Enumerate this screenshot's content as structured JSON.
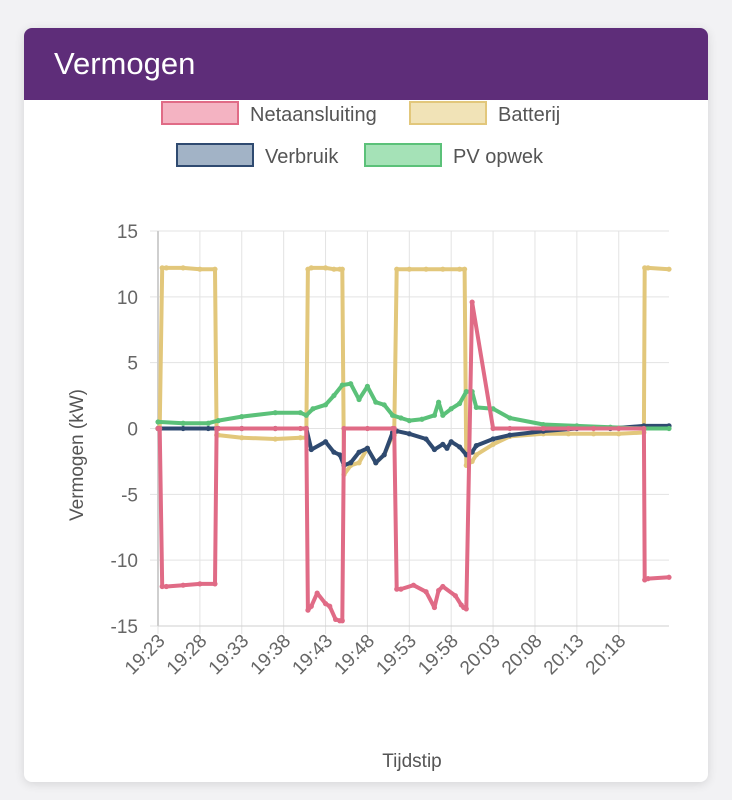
{
  "card": {
    "title": "Vermogen"
  },
  "chart_data": {
    "type": "line",
    "title": "",
    "xlabel": "Tijdstip",
    "ylabel": "Vermogen (kW)",
    "ylim": [
      -15,
      15
    ],
    "xlim_minutes": [
      0,
      61
    ],
    "xtick_labels": [
      "19:23",
      "19:28",
      "19:33",
      "19:38",
      "19:43",
      "19:48",
      "19:53",
      "19:58",
      "20:03",
      "20:08",
      "20:13",
      "20:18"
    ],
    "ytick_values": [
      15,
      10,
      5,
      0,
      -5,
      -10,
      -15
    ],
    "grid": true,
    "legend_position": "top",
    "series": [
      {
        "name": "Netaansluiting",
        "color": "#e06b86",
        "fill": "#f4b3c2",
        "x": [
          0,
          0.2,
          0.5,
          1,
          3,
          5,
          6.8,
          7.0,
          7.2,
          10,
          14,
          17,
          17.7,
          17.9,
          18.3,
          19,
          20,
          20.5,
          21.2,
          21.7,
          22,
          22.2,
          25,
          28,
          28.2,
          28.5,
          29,
          30.5,
          32,
          33,
          33.5,
          34,
          35.5,
          36.2,
          36.5,
          36.8,
          37.5,
          40,
          42,
          46,
          49,
          52,
          55,
          58,
          58.1,
          58.5,
          61
        ],
        "y": [
          0,
          0,
          -12,
          -12,
          -11.9,
          -11.8,
          -11.8,
          0,
          0,
          0,
          0,
          0,
          0,
          -13.8,
          -13.5,
          -12.5,
          -13.3,
          -13.5,
          -14.5,
          -14.6,
          -14.6,
          0,
          0,
          0,
          0,
          -12.2,
          -12.2,
          -11.9,
          -12.4,
          -13.6,
          -12.3,
          -12.0,
          -12.7,
          -13.4,
          -13.6,
          -13.7,
          9.6,
          0,
          0,
          0,
          0,
          0,
          0,
          0,
          -11.5,
          -11.4,
          -11.3
        ]
      },
      {
        "name": "Batterij",
        "color": "#e2c77b",
        "fill": "#f1e3b7",
        "x": [
          0,
          0.2,
          0.5,
          1,
          3,
          5,
          6.8,
          7.0,
          7.2,
          10,
          14,
          17,
          17.7,
          17.9,
          18.3,
          20,
          21,
          21.7,
          22,
          22.2,
          23,
          24,
          25,
          26,
          27,
          28,
          28.2,
          28.5,
          30,
          32,
          34,
          36,
          36.6,
          36.8,
          37.5,
          38,
          40,
          42,
          46,
          49,
          52,
          55,
          58,
          58.1,
          58.5,
          61
        ],
        "y": [
          0,
          0,
          12.2,
          12.2,
          12.2,
          12.1,
          12.1,
          -0.5,
          -0.5,
          -0.7,
          -0.8,
          -0.7,
          -0.7,
          12.1,
          12.2,
          12.2,
          12.1,
          12.1,
          12.1,
          -3.5,
          -2.8,
          -2.6,
          -1.5,
          -2.6,
          -2.0,
          -0.5,
          -0.5,
          12.1,
          12.1,
          12.1,
          12.1,
          12.1,
          12.1,
          -2.8,
          -2.5,
          -2.0,
          -1.2,
          -0.6,
          -0.4,
          -0.4,
          -0.4,
          -0.4,
          -0.3,
          12.2,
          12.2,
          12.1
        ]
      },
      {
        "name": "Verbruik",
        "color": "#2f4a70",
        "fill": "#a2b3c6",
        "x": [
          0,
          3,
          6,
          7.2,
          10,
          14,
          17.7,
          18.3,
          20,
          21,
          21.7,
          22.2,
          23,
          24,
          25,
          26,
          27,
          28,
          28.5,
          30,
          32,
          33,
          34,
          34.5,
          35,
          36,
          36.8,
          37.5,
          38,
          40,
          42,
          46,
          50,
          54,
          58,
          61
        ],
        "y": [
          0,
          0,
          0,
          0,
          0,
          0,
          0,
          -1.6,
          -1.0,
          -1.8,
          -2.0,
          -2.8,
          -2.6,
          -1.8,
          -1.5,
          -2.6,
          -2.0,
          -0.3,
          -0.2,
          -0.4,
          -0.8,
          -1.6,
          -1.2,
          -1.5,
          -1.0,
          -1.4,
          -2.0,
          -1.8,
          -1.3,
          -0.8,
          -0.5,
          -0.2,
          0,
          0,
          0.2,
          0.2
        ]
      },
      {
        "name": "PV opwek",
        "color": "#5bc179",
        "fill": "#a5e2b7",
        "x": [
          0,
          3,
          6,
          7.2,
          10,
          14,
          17,
          17.7,
          18.5,
          20,
          21,
          22,
          23,
          24,
          25,
          26,
          27,
          28,
          29,
          30,
          31.5,
          33,
          33.5,
          34,
          35,
          36,
          36.8,
          37.5,
          38,
          40,
          42,
          46,
          50,
          54,
          58,
          61
        ],
        "y": [
          0.5,
          0.4,
          0.4,
          0.6,
          0.9,
          1.2,
          1.2,
          1.0,
          1.5,
          1.8,
          2.5,
          3.3,
          3.4,
          2.2,
          3.2,
          2.0,
          1.8,
          1.0,
          0.8,
          0.6,
          0.7,
          1.0,
          2.0,
          1.0,
          1.5,
          1.9,
          2.8,
          2.8,
          1.6,
          1.5,
          0.8,
          0.3,
          0.2,
          0.1,
          0.0,
          0.0
        ]
      }
    ]
  }
}
